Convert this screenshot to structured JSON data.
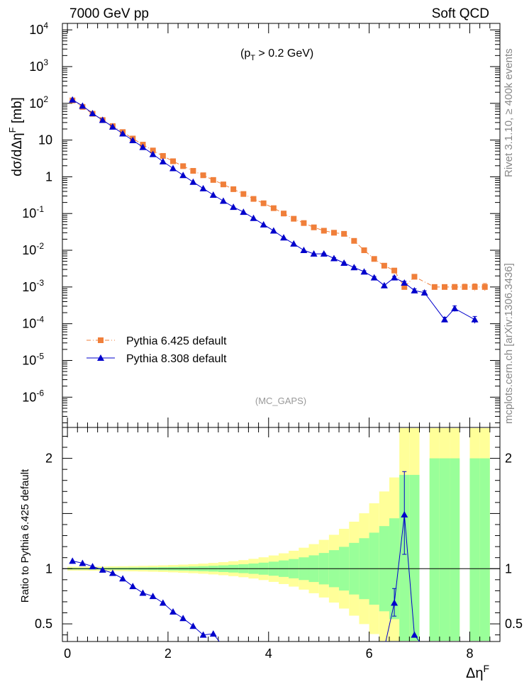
{
  "header": {
    "left": "7000 GeV pp",
    "right": "Soft QCD",
    "cut": "(p",
    "cut_sub": "T",
    "cut_tail": " > 0.2 GeV)",
    "watermark": "(MC_GAPS)",
    "side_top": "Rivet 3.1.10, ≥ 400k events",
    "side_bottom": "mcplots.cern.ch [arXiv:1306.3436]"
  },
  "axes": {
    "ylabel_main": "dσ/dΔη",
    "ylabel_main_sup": "F",
    "ylabel_main_unit": " [mb]",
    "ylabel_ratio": "Ratio to Pythia 6.425 default",
    "xlabel": "Δη",
    "xlabel_sup": "F"
  },
  "legend": {
    "p6": "Pythia 6.425 default",
    "p8": "Pythia 8.308 default"
  },
  "colors": {
    "p6": "#f07f3a",
    "p8": "#0000cc",
    "band_inner": "#99ff99",
    "band_outer": "#ffff99"
  },
  "chart_data": {
    "type": "scatter",
    "x_range": [
      -0.1,
      8.6
    ],
    "main": {
      "yscale": "log",
      "ylim": [
        1.5e-07,
        15000.0
      ],
      "yticks": [
        "10^4",
        "10^3",
        "10^2",
        "10",
        "1",
        "10^-1",
        "10^-2",
        "10^-3",
        "10^-4",
        "10^-5",
        "10^-6"
      ],
      "series": [
        {
          "name": "Pythia 6.425 default",
          "marker": "square",
          "x": [
            0.1,
            0.3,
            0.5,
            0.7,
            0.9,
            1.1,
            1.3,
            1.5,
            1.7,
            1.9,
            2.1,
            2.3,
            2.5,
            2.7,
            2.9,
            3.1,
            3.3,
            3.5,
            3.7,
            3.9,
            4.1,
            4.3,
            4.5,
            4.7,
            4.9,
            5.1,
            5.3,
            5.5,
            5.7,
            5.9,
            6.1,
            6.3,
            6.5,
            6.7,
            6.9,
            7.1,
            7.3,
            7.5,
            7.7,
            7.9,
            8.1,
            8.3
          ],
          "y": [
            120,
            80,
            52,
            35,
            24,
            16.5,
            11,
            7.5,
            5.2,
            3.7,
            2.65,
            1.95,
            1.45,
            1.1,
            0.82,
            0.62,
            0.46,
            0.34,
            0.25,
            0.19,
            0.14,
            0.1,
            0.072,
            0.055,
            0.042,
            0.034,
            0.03,
            0.028,
            0.018,
            0.01,
            0.0058,
            0.0038,
            0.0028,
            0.001,
            0.0019,
            null,
            0.001,
            0.001,
            0.001,
            0.001,
            0.001,
            0.001
          ]
        },
        {
          "name": "Pythia 8.308 default",
          "marker": "triangle",
          "x": [
            0.1,
            0.3,
            0.5,
            0.7,
            0.9,
            1.1,
            1.3,
            1.5,
            1.7,
            1.9,
            2.1,
            2.3,
            2.5,
            2.7,
            2.9,
            3.1,
            3.3,
            3.5,
            3.7,
            3.9,
            4.1,
            4.3,
            4.5,
            4.7,
            4.9,
            5.1,
            5.3,
            5.5,
            5.7,
            5.9,
            6.1,
            6.3,
            6.5,
            6.7,
            6.9,
            7.1,
            7.3,
            7.5,
            7.7,
            7.9,
            8.1,
            8.3
          ],
          "y": [
            125,
            85,
            53,
            35,
            23,
            15,
            9.8,
            6.4,
            4.1,
            2.6,
            1.7,
            1.1,
            0.72,
            0.48,
            0.32,
            0.22,
            0.15,
            0.11,
            0.075,
            0.05,
            0.034,
            0.022,
            0.015,
            0.01,
            0.008,
            0.008,
            0.006,
            0.0045,
            0.0034,
            0.0026,
            0.0018,
            0.0011,
            0.0018,
            0.0013,
            0.0008,
            0.0007,
            null,
            0.00013,
            0.00026,
            null,
            0.00013,
            null
          ]
        }
      ]
    },
    "ratio": {
      "ylim": [
        0.34,
        2.28
      ],
      "yticks": [
        0.5,
        1,
        2
      ],
      "xticks": [
        0,
        2,
        4,
        6,
        8
      ],
      "reference_line": 1,
      "p8_ratio": {
        "x": [
          0.1,
          0.3,
          0.5,
          0.7,
          0.9,
          1.1,
          1.3,
          1.5,
          1.7,
          1.9,
          2.1,
          2.3,
          2.5,
          2.7,
          2.9,
          6.5,
          6.7,
          6.9
        ],
        "y": [
          1.07,
          1.05,
          1.02,
          0.99,
          0.96,
          0.91,
          0.84,
          0.78,
          0.75,
          0.69,
          0.61,
          0.55,
          0.48,
          0.4,
          0.41,
          0.69,
          1.49,
          0.4
        ]
      }
    }
  }
}
